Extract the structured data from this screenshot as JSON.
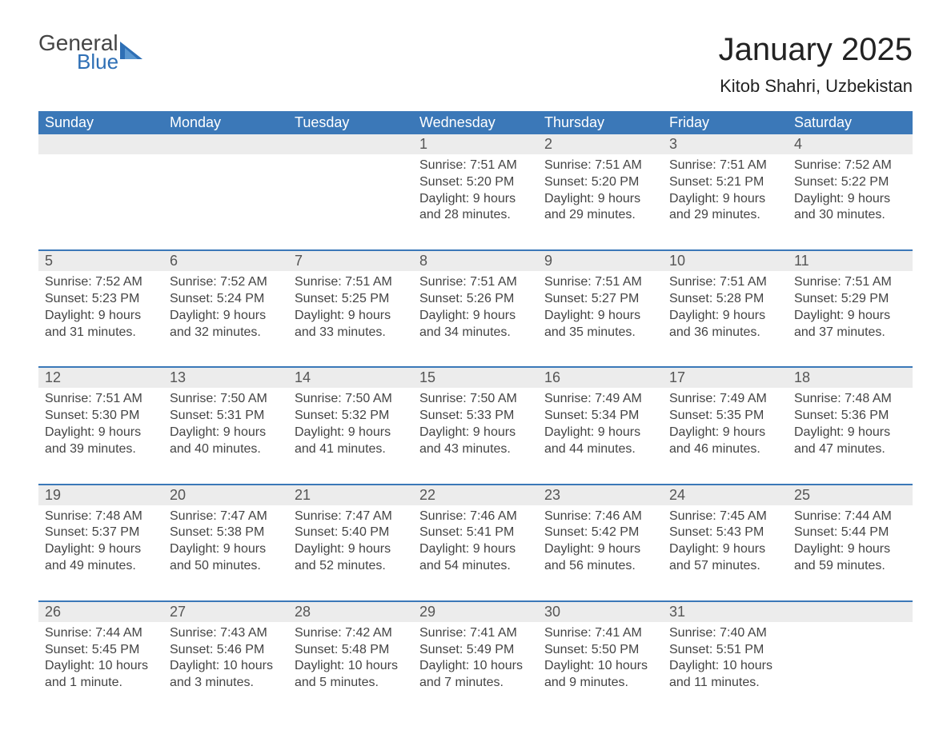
{
  "brand": {
    "name_part1": "General",
    "name_part2": "Blue",
    "color_primary": "#2e6fb5",
    "color_dark": "#444444"
  },
  "title": "January 2025",
  "location": "Kitob Shahri, Uzbekistan",
  "header_bg": "#3b78b8",
  "header_text_color": "#ffffff",
  "daynum_bg": "#ececec",
  "body_text_color": "#444444",
  "background_color": "#ffffff",
  "separator_color": "#3b78b8",
  "font_family": "Arial",
  "title_fontsize": 40,
  "dayheader_fontsize": 18,
  "cell_fontsize": 16,
  "day_names": [
    "Sunday",
    "Monday",
    "Tuesday",
    "Wednesday",
    "Thursday",
    "Friday",
    "Saturday"
  ],
  "weeks": [
    [
      null,
      null,
      null,
      {
        "n": "1",
        "sunrise": "Sunrise: 7:51 AM",
        "sunset": "Sunset: 5:20 PM",
        "day1": "Daylight: 9 hours",
        "day2": "and 28 minutes."
      },
      {
        "n": "2",
        "sunrise": "Sunrise: 7:51 AM",
        "sunset": "Sunset: 5:20 PM",
        "day1": "Daylight: 9 hours",
        "day2": "and 29 minutes."
      },
      {
        "n": "3",
        "sunrise": "Sunrise: 7:51 AM",
        "sunset": "Sunset: 5:21 PM",
        "day1": "Daylight: 9 hours",
        "day2": "and 29 minutes."
      },
      {
        "n": "4",
        "sunrise": "Sunrise: 7:52 AM",
        "sunset": "Sunset: 5:22 PM",
        "day1": "Daylight: 9 hours",
        "day2": "and 30 minutes."
      }
    ],
    [
      {
        "n": "5",
        "sunrise": "Sunrise: 7:52 AM",
        "sunset": "Sunset: 5:23 PM",
        "day1": "Daylight: 9 hours",
        "day2": "and 31 minutes."
      },
      {
        "n": "6",
        "sunrise": "Sunrise: 7:52 AM",
        "sunset": "Sunset: 5:24 PM",
        "day1": "Daylight: 9 hours",
        "day2": "and 32 minutes."
      },
      {
        "n": "7",
        "sunrise": "Sunrise: 7:51 AM",
        "sunset": "Sunset: 5:25 PM",
        "day1": "Daylight: 9 hours",
        "day2": "and 33 minutes."
      },
      {
        "n": "8",
        "sunrise": "Sunrise: 7:51 AM",
        "sunset": "Sunset: 5:26 PM",
        "day1": "Daylight: 9 hours",
        "day2": "and 34 minutes."
      },
      {
        "n": "9",
        "sunrise": "Sunrise: 7:51 AM",
        "sunset": "Sunset: 5:27 PM",
        "day1": "Daylight: 9 hours",
        "day2": "and 35 minutes."
      },
      {
        "n": "10",
        "sunrise": "Sunrise: 7:51 AM",
        "sunset": "Sunset: 5:28 PM",
        "day1": "Daylight: 9 hours",
        "day2": "and 36 minutes."
      },
      {
        "n": "11",
        "sunrise": "Sunrise: 7:51 AM",
        "sunset": "Sunset: 5:29 PM",
        "day1": "Daylight: 9 hours",
        "day2": "and 37 minutes."
      }
    ],
    [
      {
        "n": "12",
        "sunrise": "Sunrise: 7:51 AM",
        "sunset": "Sunset: 5:30 PM",
        "day1": "Daylight: 9 hours",
        "day2": "and 39 minutes."
      },
      {
        "n": "13",
        "sunrise": "Sunrise: 7:50 AM",
        "sunset": "Sunset: 5:31 PM",
        "day1": "Daylight: 9 hours",
        "day2": "and 40 minutes."
      },
      {
        "n": "14",
        "sunrise": "Sunrise: 7:50 AM",
        "sunset": "Sunset: 5:32 PM",
        "day1": "Daylight: 9 hours",
        "day2": "and 41 minutes."
      },
      {
        "n": "15",
        "sunrise": "Sunrise: 7:50 AM",
        "sunset": "Sunset: 5:33 PM",
        "day1": "Daylight: 9 hours",
        "day2": "and 43 minutes."
      },
      {
        "n": "16",
        "sunrise": "Sunrise: 7:49 AM",
        "sunset": "Sunset: 5:34 PM",
        "day1": "Daylight: 9 hours",
        "day2": "and 44 minutes."
      },
      {
        "n": "17",
        "sunrise": "Sunrise: 7:49 AM",
        "sunset": "Sunset: 5:35 PM",
        "day1": "Daylight: 9 hours",
        "day2": "and 46 minutes."
      },
      {
        "n": "18",
        "sunrise": "Sunrise: 7:48 AM",
        "sunset": "Sunset: 5:36 PM",
        "day1": "Daylight: 9 hours",
        "day2": "and 47 minutes."
      }
    ],
    [
      {
        "n": "19",
        "sunrise": "Sunrise: 7:48 AM",
        "sunset": "Sunset: 5:37 PM",
        "day1": "Daylight: 9 hours",
        "day2": "and 49 minutes."
      },
      {
        "n": "20",
        "sunrise": "Sunrise: 7:47 AM",
        "sunset": "Sunset: 5:38 PM",
        "day1": "Daylight: 9 hours",
        "day2": "and 50 minutes."
      },
      {
        "n": "21",
        "sunrise": "Sunrise: 7:47 AM",
        "sunset": "Sunset: 5:40 PM",
        "day1": "Daylight: 9 hours",
        "day2": "and 52 minutes."
      },
      {
        "n": "22",
        "sunrise": "Sunrise: 7:46 AM",
        "sunset": "Sunset: 5:41 PM",
        "day1": "Daylight: 9 hours",
        "day2": "and 54 minutes."
      },
      {
        "n": "23",
        "sunrise": "Sunrise: 7:46 AM",
        "sunset": "Sunset: 5:42 PM",
        "day1": "Daylight: 9 hours",
        "day2": "and 56 minutes."
      },
      {
        "n": "24",
        "sunrise": "Sunrise: 7:45 AM",
        "sunset": "Sunset: 5:43 PM",
        "day1": "Daylight: 9 hours",
        "day2": "and 57 minutes."
      },
      {
        "n": "25",
        "sunrise": "Sunrise: 7:44 AM",
        "sunset": "Sunset: 5:44 PM",
        "day1": "Daylight: 9 hours",
        "day2": "and 59 minutes."
      }
    ],
    [
      {
        "n": "26",
        "sunrise": "Sunrise: 7:44 AM",
        "sunset": "Sunset: 5:45 PM",
        "day1": "Daylight: 10 hours",
        "day2": "and 1 minute."
      },
      {
        "n": "27",
        "sunrise": "Sunrise: 7:43 AM",
        "sunset": "Sunset: 5:46 PM",
        "day1": "Daylight: 10 hours",
        "day2": "and 3 minutes."
      },
      {
        "n": "28",
        "sunrise": "Sunrise: 7:42 AM",
        "sunset": "Sunset: 5:48 PM",
        "day1": "Daylight: 10 hours",
        "day2": "and 5 minutes."
      },
      {
        "n": "29",
        "sunrise": "Sunrise: 7:41 AM",
        "sunset": "Sunset: 5:49 PM",
        "day1": "Daylight: 10 hours",
        "day2": "and 7 minutes."
      },
      {
        "n": "30",
        "sunrise": "Sunrise: 7:41 AM",
        "sunset": "Sunset: 5:50 PM",
        "day1": "Daylight: 10 hours",
        "day2": "and 9 minutes."
      },
      {
        "n": "31",
        "sunrise": "Sunrise: 7:40 AM",
        "sunset": "Sunset: 5:51 PM",
        "day1": "Daylight: 10 hours",
        "day2": "and 11 minutes."
      },
      null
    ]
  ]
}
